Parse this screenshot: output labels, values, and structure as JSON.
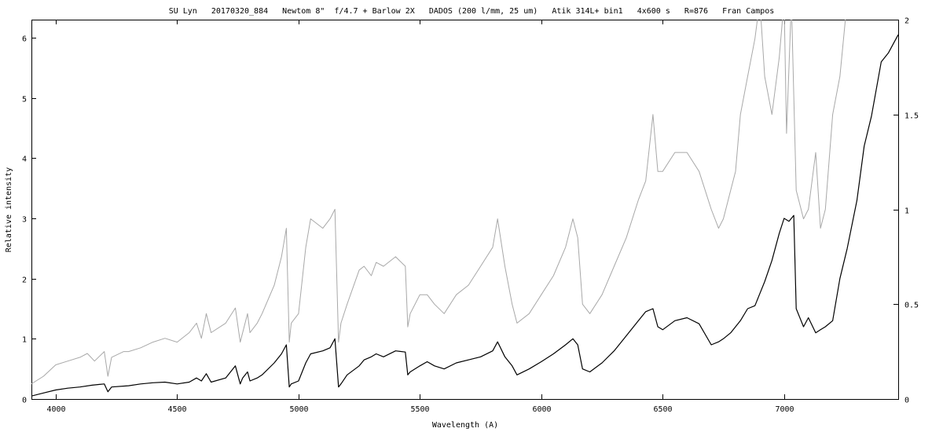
{
  "chart_data": {
    "type": "line",
    "title": "SU Lyn   20170320_884   Newtom 8\"  f/4.7 + Barlow 2X   DADOS (200 l/mm, 25 um)   Atik 314L+ bin1   4x600 s   R=876   Fran Campos",
    "xlabel": "Wavelength (A)",
    "ylabel": "Relative intensity",
    "xlim": [
      3900,
      7470
    ],
    "ylim": [
      0,
      6.3
    ],
    "y2lim": [
      0,
      2
    ],
    "grid": false,
    "x_ticks": [
      "4000",
      "4500",
      "5000",
      "5500",
      "6000",
      "6500",
      "7000"
    ],
    "y_ticks": [
      "0",
      "1",
      "2",
      "3",
      "4",
      "5",
      "6"
    ],
    "y2_ticks": [
      "0",
      "0.5",
      "1",
      "1.5",
      "2"
    ],
    "series": [
      {
        "axis": "left",
        "color": "#000000",
        "x": [
          3900,
          3950,
          4000,
          4050,
          4100,
          4150,
          4200,
          4215,
          4230,
          4300,
          4350,
          4400,
          4450,
          4500,
          4550,
          4580,
          4600,
          4620,
          4640,
          4700,
          4740,
          4760,
          4770,
          4790,
          4800,
          4830,
          4850,
          4900,
          4930,
          4950,
          4962,
          4970,
          5000,
          5030,
          5050,
          5100,
          5130,
          5150,
          5165,
          5175,
          5200,
          5250,
          5270,
          5300,
          5320,
          5350,
          5400,
          5440,
          5450,
          5460,
          5500,
          5530,
          5560,
          5600,
          5650,
          5700,
          5750,
          5800,
          5820,
          5850,
          5880,
          5900,
          5950,
          6000,
          6050,
          6100,
          6130,
          6150,
          6170,
          6200,
          6250,
          6300,
          6350,
          6400,
          6430,
          6460,
          6480,
          6500,
          6550,
          6600,
          6650,
          6700,
          6730,
          6750,
          6780,
          6800,
          6820,
          6850,
          6880,
          6900,
          6920,
          6950,
          6980,
          7000,
          7020,
          7040,
          7050,
          7080,
          7100,
          7130,
          7150,
          7170,
          7200,
          7230,
          7260,
          7300,
          7330,
          7360,
          7400,
          7430,
          7450,
          7470
        ],
        "y": [
          0.05,
          0.1,
          0.15,
          0.18,
          0.2,
          0.23,
          0.25,
          0.12,
          0.2,
          0.22,
          0.25,
          0.27,
          0.28,
          0.25,
          0.28,
          0.35,
          0.3,
          0.42,
          0.28,
          0.35,
          0.55,
          0.25,
          0.35,
          0.45,
          0.3,
          0.35,
          0.4,
          0.6,
          0.75,
          0.9,
          0.2,
          0.25,
          0.3,
          0.6,
          0.75,
          0.8,
          0.85,
          1.0,
          0.2,
          0.25,
          0.4,
          0.55,
          0.65,
          0.7,
          0.75,
          0.7,
          0.8,
          0.78,
          0.4,
          0.45,
          0.55,
          0.62,
          0.55,
          0.5,
          0.6,
          0.65,
          0.7,
          0.8,
          0.95,
          0.7,
          0.55,
          0.4,
          0.5,
          0.62,
          0.75,
          0.9,
          1.0,
          0.9,
          0.5,
          0.45,
          0.6,
          0.8,
          1.05,
          1.3,
          1.45,
          1.5,
          1.2,
          1.15,
          1.3,
          1.35,
          1.25,
          0.9,
          0.95,
          1.0,
          1.1,
          1.2,
          1.3,
          1.5,
          1.55,
          1.75,
          1.95,
          2.3,
          2.75,
          3.0,
          2.95,
          3.05,
          1.5,
          1.2,
          1.35,
          1.1,
          1.15,
          1.2,
          1.3,
          2.0,
          2.5,
          3.3,
          4.2,
          4.7,
          5.6,
          5.75,
          5.9,
          6.05
        ]
      },
      {
        "axis": "right",
        "color": "#a8a8a8",
        "x": [
          3900,
          3950,
          4000,
          4050,
          4100,
          4130,
          4160,
          4200,
          4215,
          4230,
          4280,
          4300,
          4350,
          4400,
          4450,
          4500,
          4550,
          4580,
          4600,
          4620,
          4640,
          4700,
          4740,
          4760,
          4770,
          4790,
          4800,
          4830,
          4850,
          4900,
          4930,
          4950,
          4962,
          4970,
          5000,
          5030,
          5050,
          5100,
          5130,
          5150,
          5165,
          5175,
          5200,
          5250,
          5270,
          5300,
          5320,
          5350,
          5400,
          5440,
          5450,
          5460,
          5500,
          5530,
          5560,
          5600,
          5650,
          5700,
          5750,
          5800,
          5820,
          5850,
          5880,
          5900,
          5950,
          6000,
          6050,
          6100,
          6130,
          6150,
          6170,
          6200,
          6250,
          6300,
          6350,
          6400,
          6430,
          6460,
          6480,
          6500,
          6550,
          6600,
          6650,
          6700,
          6730,
          6750,
          6780,
          6800,
          6820,
          6850,
          6880,
          6900,
          6920,
          6950,
          6980,
          7000,
          7010,
          7030,
          7040,
          7050,
          7080,
          7100,
          7130,
          7150,
          7170,
          7200,
          7230,
          7260
        ],
        "y": [
          0.08,
          0.12,
          0.18,
          0.2,
          0.22,
          0.24,
          0.2,
          0.25,
          0.12,
          0.22,
          0.25,
          0.25,
          0.27,
          0.3,
          0.32,
          0.3,
          0.35,
          0.4,
          0.32,
          0.45,
          0.35,
          0.4,
          0.48,
          0.3,
          0.35,
          0.45,
          0.35,
          0.4,
          0.45,
          0.6,
          0.75,
          0.9,
          0.3,
          0.4,
          0.45,
          0.8,
          0.95,
          0.9,
          0.95,
          1.0,
          0.3,
          0.4,
          0.5,
          0.68,
          0.7,
          0.65,
          0.72,
          0.7,
          0.75,
          0.7,
          0.38,
          0.45,
          0.55,
          0.55,
          0.5,
          0.45,
          0.55,
          0.6,
          0.7,
          0.8,
          0.95,
          0.7,
          0.5,
          0.4,
          0.45,
          0.55,
          0.65,
          0.8,
          0.95,
          0.85,
          0.5,
          0.45,
          0.55,
          0.7,
          0.85,
          1.05,
          1.15,
          1.5,
          1.2,
          1.2,
          1.3,
          1.3,
          1.2,
          1.0,
          0.9,
          0.95,
          1.1,
          1.2,
          1.5,
          1.7,
          1.9,
          2.1,
          1.7,
          1.5,
          1.8,
          2.1,
          1.4,
          2.1,
          1.6,
          1.1,
          0.95,
          1.0,
          1.3,
          0.9,
          1.0,
          1.5,
          1.7,
          2.1
        ]
      }
    ]
  }
}
